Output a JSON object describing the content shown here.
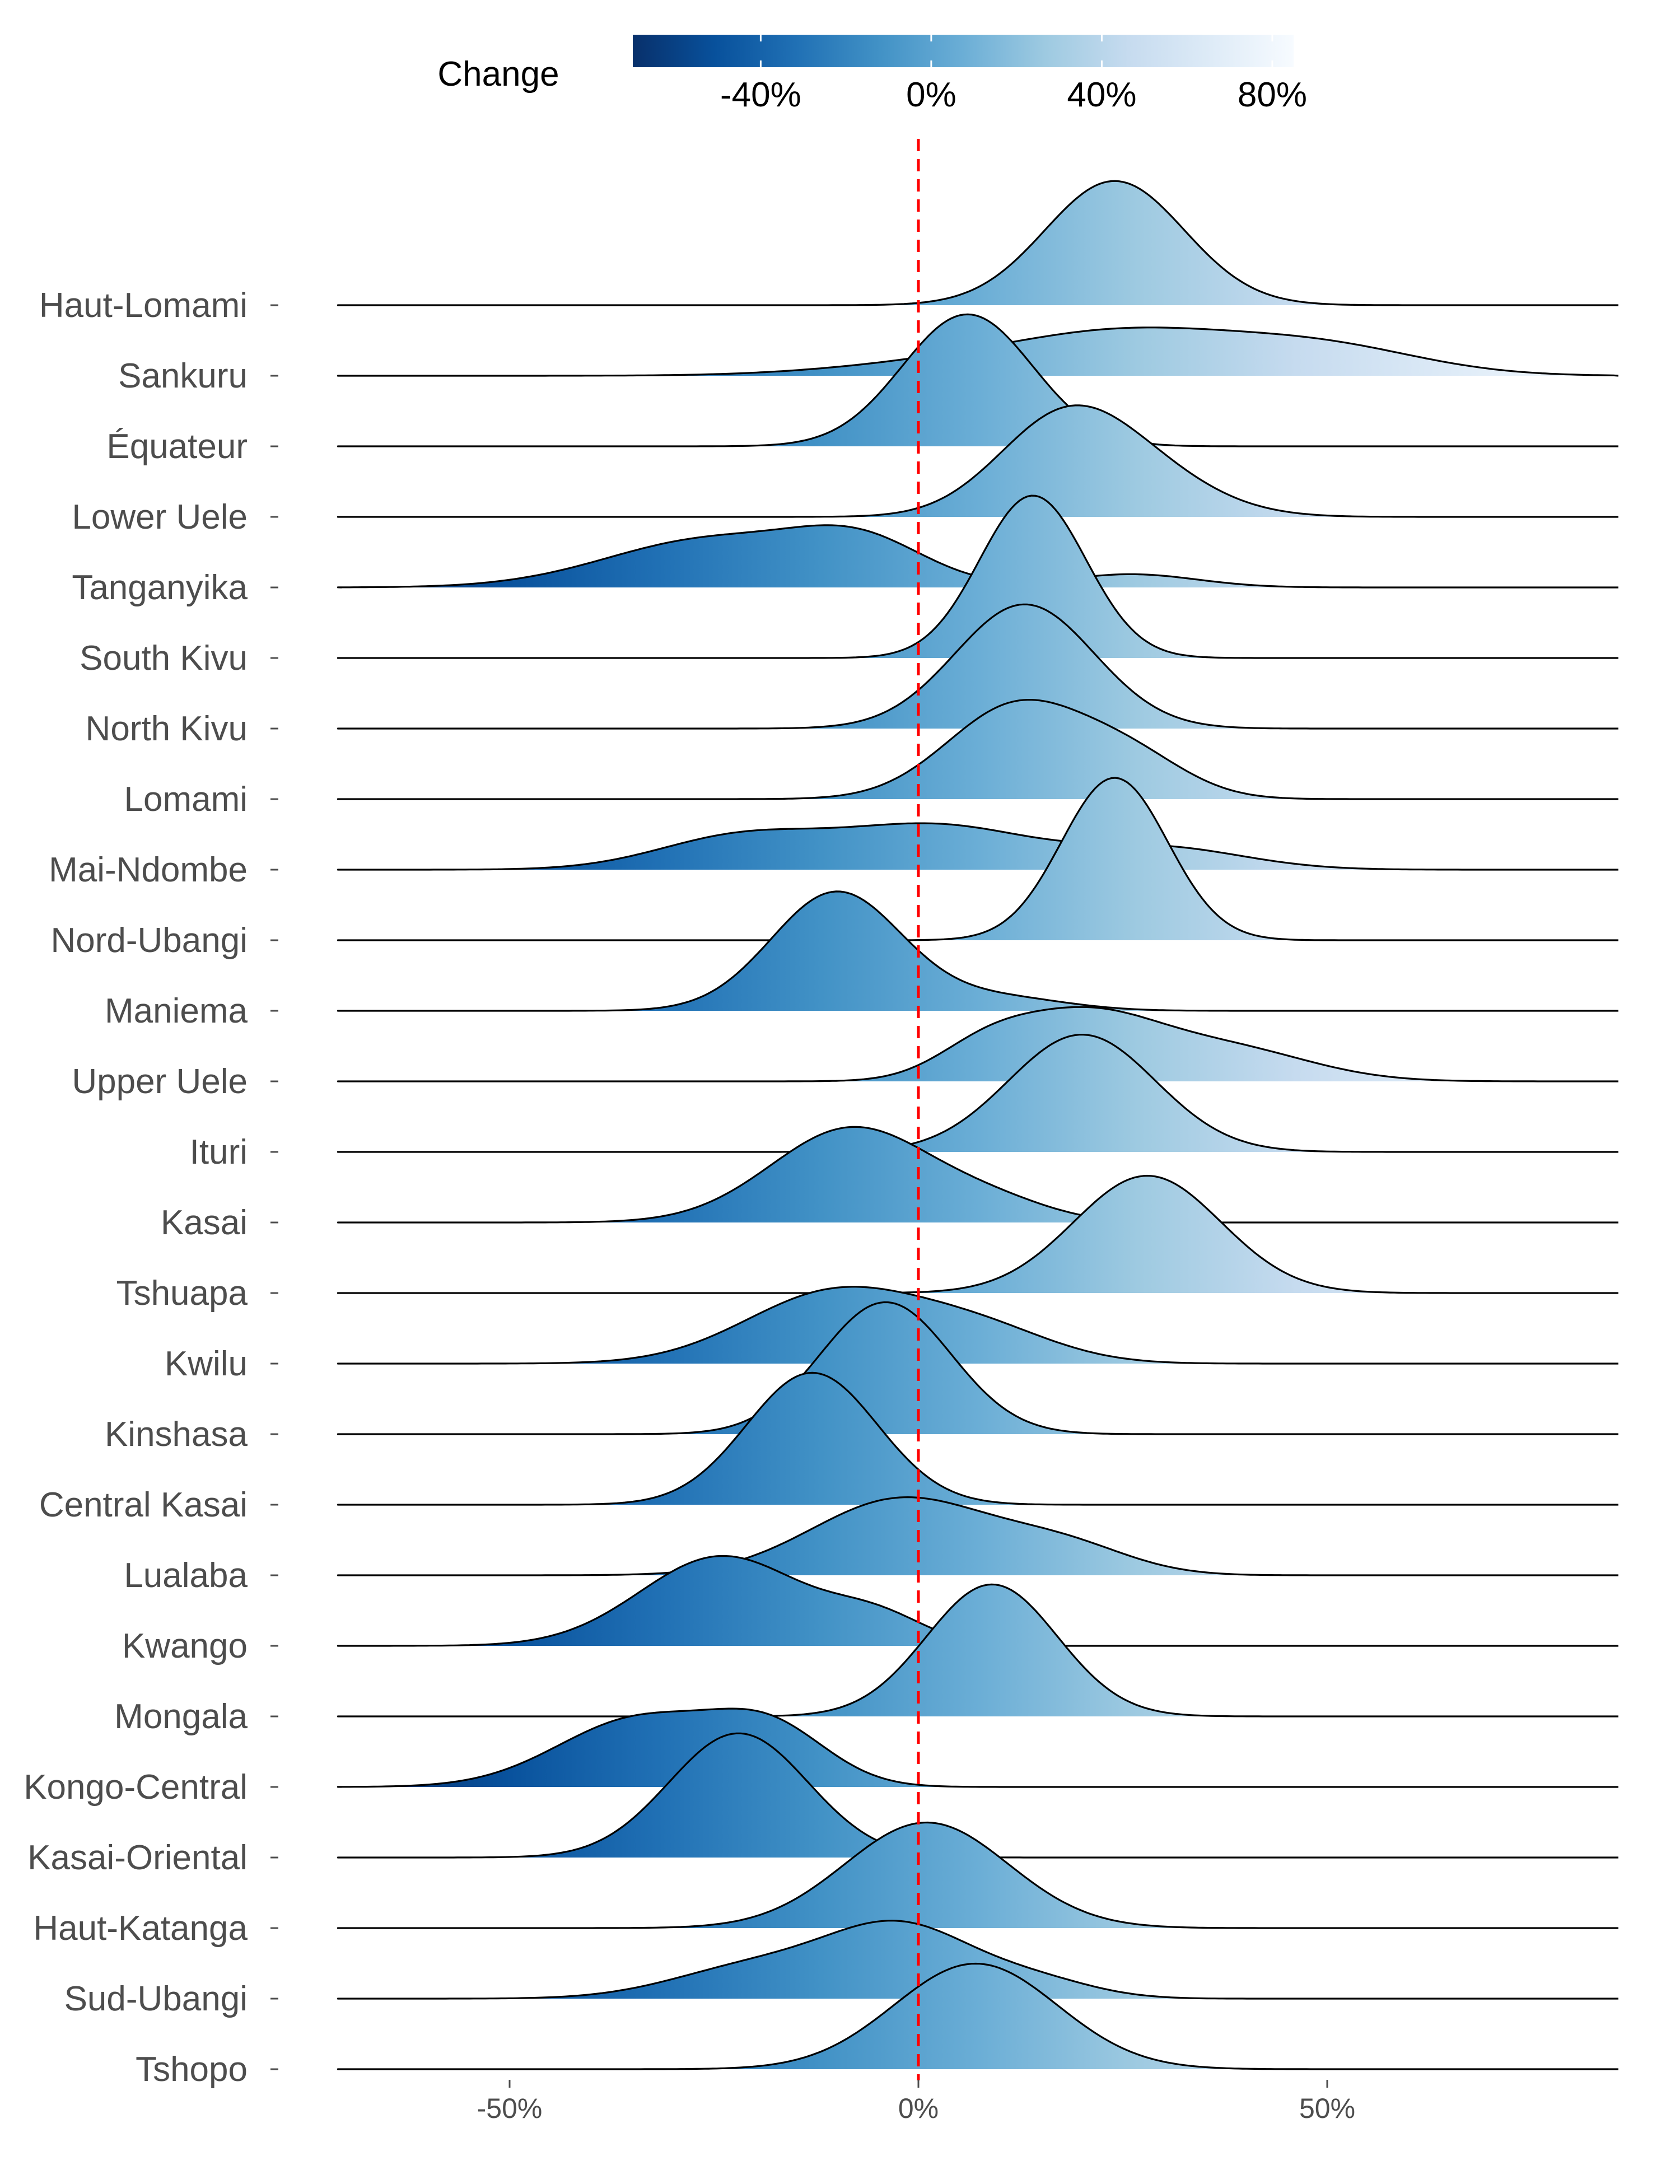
{
  "chart_data": {
    "type": "ridgeline",
    "title": "",
    "xlabel": "",
    "ylabel": "",
    "xlim": [
      -71,
      85
    ],
    "x_ticks": [
      {
        "value": -50,
        "label": "-50%"
      },
      {
        "value": 0,
        "label": "0%"
      },
      {
        "value": 50,
        "label": "50%"
      }
    ],
    "reference_line": {
      "x": 0,
      "color": "#ff0000",
      "style": "dashed"
    },
    "legend": {
      "title": "Change",
      "placement": "top",
      "range": [
        -70,
        85
      ],
      "ticks": [
        {
          "value": -40,
          "label": "-40%"
        },
        {
          "value": 0,
          "label": "0%"
        },
        {
          "value": 40,
          "label": "40%"
        },
        {
          "value": 80,
          "label": "80%"
        }
      ],
      "colors": [
        "#08306b",
        "#08519c",
        "#2171b5",
        "#4292c6",
        "#6baed6",
        "#9ecae1",
        "#c6dbef",
        "#deebf7",
        "#f7fbff"
      ]
    },
    "series": [
      {
        "name": "Haut-Lomami",
        "components": [
          {
            "mu": 24,
            "sd": 8.5,
            "w": 1
          }
        ]
      },
      {
        "name": "Sankuru",
        "components": [
          {
            "mu": 3,
            "sd": 14,
            "w": 0.15
          },
          {
            "mu": 26,
            "sd": 14,
            "w": 0.55
          },
          {
            "mu": 50,
            "sd": 12,
            "w": 0.3
          }
        ]
      },
      {
        "name": "Équateur",
        "components": [
          {
            "mu": 6,
            "sd": 8,
            "w": 1
          }
        ]
      },
      {
        "name": "Lower Uele",
        "components": [
          {
            "mu": 17,
            "sd": 8,
            "w": 0.6
          },
          {
            "mu": 26,
            "sd": 9,
            "w": 0.4
          }
        ]
      },
      {
        "name": "Tanganyika",
        "components": [
          {
            "mu": -25,
            "sd": 13,
            "w": 0.6
          },
          {
            "mu": -7,
            "sd": 8,
            "w": 0.3
          },
          {
            "mu": 26,
            "sd": 8,
            "w": 0.1
          }
        ]
      },
      {
        "name": "South Kivu",
        "components": [
          {
            "mu": 14,
            "sd": 6.5,
            "w": 1
          }
        ]
      },
      {
        "name": "North Kivu",
        "components": [
          {
            "mu": 13,
            "sd": 8.5,
            "w": 1
          }
        ]
      },
      {
        "name": "Lomami",
        "components": [
          {
            "mu": 12,
            "sd": 8.5,
            "w": 0.75
          },
          {
            "mu": 26,
            "sd": 7,
            "w": 0.25
          }
        ]
      },
      {
        "name": "Mai-Ndombe",
        "components": [
          {
            "mu": -22,
            "sd": 10,
            "w": 0.3
          },
          {
            "mu": 2,
            "sd": 12,
            "w": 0.5
          },
          {
            "mu": 30,
            "sd": 10,
            "w": 0.2
          }
        ]
      },
      {
        "name": "Nord-Ubangi",
        "components": [
          {
            "mu": 24,
            "sd": 6.5,
            "w": 1
          }
        ]
      },
      {
        "name": "Maniema",
        "components": [
          {
            "mu": -10,
            "sd": 8,
            "w": 0.9
          },
          {
            "mu": 10,
            "sd": 8,
            "w": 0.1
          }
        ]
      },
      {
        "name": "Upper Uele",
        "components": [
          {
            "mu": 8,
            "sd": 6,
            "w": 0.15
          },
          {
            "mu": 20,
            "sd": 9,
            "w": 0.55
          },
          {
            "mu": 38,
            "sd": 10,
            "w": 0.3
          }
        ]
      },
      {
        "name": "Ituri",
        "components": [
          {
            "mu": 20,
            "sd": 9,
            "w": 1
          }
        ]
      },
      {
        "name": "Kasai",
        "components": [
          {
            "mu": -8,
            "sd": 10,
            "w": 0.9
          },
          {
            "mu": 10,
            "sd": 7,
            "w": 0.1
          }
        ]
      },
      {
        "name": "Tshuapa",
        "components": [
          {
            "mu": 28,
            "sd": 9,
            "w": 1
          }
        ]
      },
      {
        "name": "Kwilu",
        "components": [
          {
            "mu": -10,
            "sd": 11,
            "w": 0.75
          },
          {
            "mu": 8,
            "sd": 9,
            "w": 0.25
          }
        ]
      },
      {
        "name": "Kinshasa",
        "components": [
          {
            "mu": -4,
            "sd": 8,
            "w": 1
          }
        ]
      },
      {
        "name": "Central Kasai",
        "components": [
          {
            "mu": -13,
            "sd": 8,
            "w": 1
          }
        ]
      },
      {
        "name": "Lualaba",
        "components": [
          {
            "mu": -2,
            "sd": 11,
            "w": 0.8
          },
          {
            "mu": 18,
            "sd": 8,
            "w": 0.2
          }
        ]
      },
      {
        "name": "Kwango",
        "components": [
          {
            "mu": -24,
            "sd": 10,
            "w": 0.85
          },
          {
            "mu": -5,
            "sd": 6,
            "w": 0.15
          }
        ]
      },
      {
        "name": "Mongala",
        "components": [
          {
            "mu": 9,
            "sd": 8,
            "w": 1
          }
        ]
      },
      {
        "name": "Kongo-Central",
        "components": [
          {
            "mu": -34,
            "sd": 10,
            "w": 0.65
          },
          {
            "mu": -18,
            "sd": 7,
            "w": 0.35
          }
        ]
      },
      {
        "name": "Kasai-Oriental",
        "components": [
          {
            "mu": -22,
            "sd": 8.5,
            "w": 1
          }
        ]
      },
      {
        "name": "Haut-Katanga",
        "components": [
          {
            "mu": 1,
            "sd": 10,
            "w": 1
          }
        ]
      },
      {
        "name": "Sud-Ubangi",
        "components": [
          {
            "mu": -20,
            "sd": 10,
            "w": 0.3
          },
          {
            "mu": -2,
            "sd": 9,
            "w": 0.6
          },
          {
            "mu": 15,
            "sd": 7,
            "w": 0.1
          }
        ]
      },
      {
        "name": "Tshopo",
        "components": [
          {
            "mu": 7,
            "sd": 10,
            "w": 1
          }
        ]
      }
    ]
  }
}
